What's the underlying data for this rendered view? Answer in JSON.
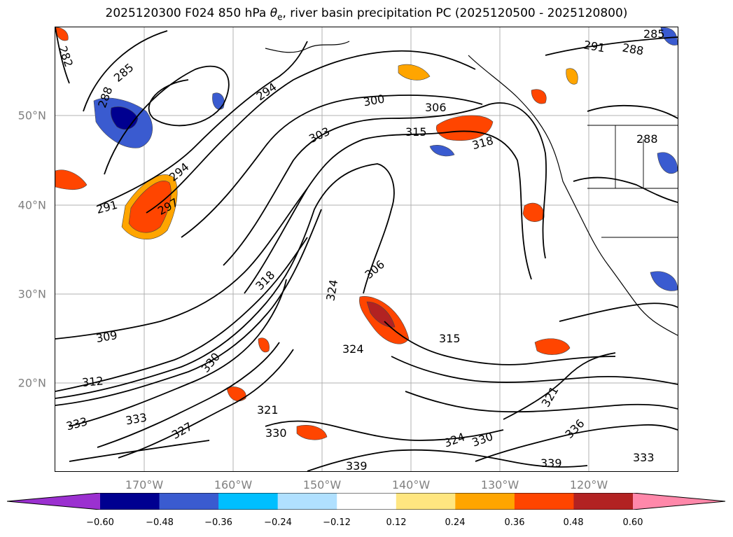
{
  "title": {
    "prefix": "2025120300 F024 850 hPa ",
    "symbol": "θ",
    "subscript": "e",
    "suffix": ", river basin precipitation PC (2025120500 - 2025120800)"
  },
  "map": {
    "lon_ticks": [
      "170°W",
      "160°W",
      "150°W",
      "140°W",
      "130°W",
      "120°W"
    ],
    "lat_ticks": [
      "50°N",
      "40°N",
      "30°N",
      "20°N"
    ],
    "contour_labels": [
      "282",
      "285",
      "288",
      "291",
      "294",
      "297",
      "300",
      "303",
      "306",
      "309",
      "312",
      "315",
      "318",
      "321",
      "324",
      "327",
      "330",
      "333",
      "336",
      "339"
    ]
  },
  "colorbar": {
    "colors": [
      "#9b30d0",
      "#000090",
      "#3a5bd0",
      "#00bfff",
      "#b0e0ff",
      "#ffffff",
      "#ffe680",
      "#ffa500",
      "#ff4500",
      "#b22222",
      "#ff88aa"
    ],
    "tick_labels": [
      "−0.60",
      "−0.48",
      "−0.36",
      "−0.24",
      "−0.12",
      "0.12",
      "0.24",
      "0.36",
      "0.48",
      "0.60"
    ]
  }
}
